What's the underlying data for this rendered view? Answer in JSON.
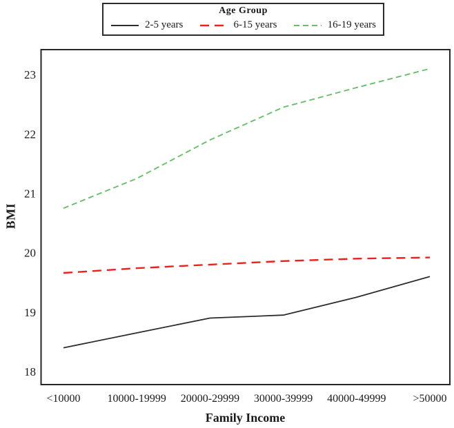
{
  "chart_data": {
    "type": "line",
    "legend_title": "Age Group",
    "xlabel": "Family Income",
    "ylabel": "BMI",
    "categories": [
      "<10000",
      "10000-19999",
      "20000-29999",
      "30000-39999",
      "40000-49999",
      ">50000"
    ],
    "series": [
      {
        "name": "2-5 years",
        "color": "#2b2b2b",
        "dash": "solid",
        "stroke_width": 1.8,
        "values": [
          18.4,
          18.65,
          18.9,
          18.95,
          19.25,
          19.6
        ]
      },
      {
        "name": "6-15 years",
        "color": "#ee2019",
        "dash": "long-dash",
        "stroke_width": 2.4,
        "values": [
          19.66,
          19.74,
          19.8,
          19.86,
          19.9,
          19.92
        ]
      },
      {
        "name": "16-19 years",
        "color": "#67bf69",
        "dash": "short-dash",
        "stroke_width": 1.9,
        "values": [
          20.75,
          21.25,
          21.9,
          22.45,
          22.78,
          23.1
        ]
      }
    ],
    "yticks": [
      18,
      19,
      20,
      21,
      22,
      23
    ],
    "ylim": [
      17.78,
      23.42
    ],
    "grid": false,
    "legend_position": "top",
    "frame_color": "#262626",
    "text_color": "#1a1a1a"
  }
}
